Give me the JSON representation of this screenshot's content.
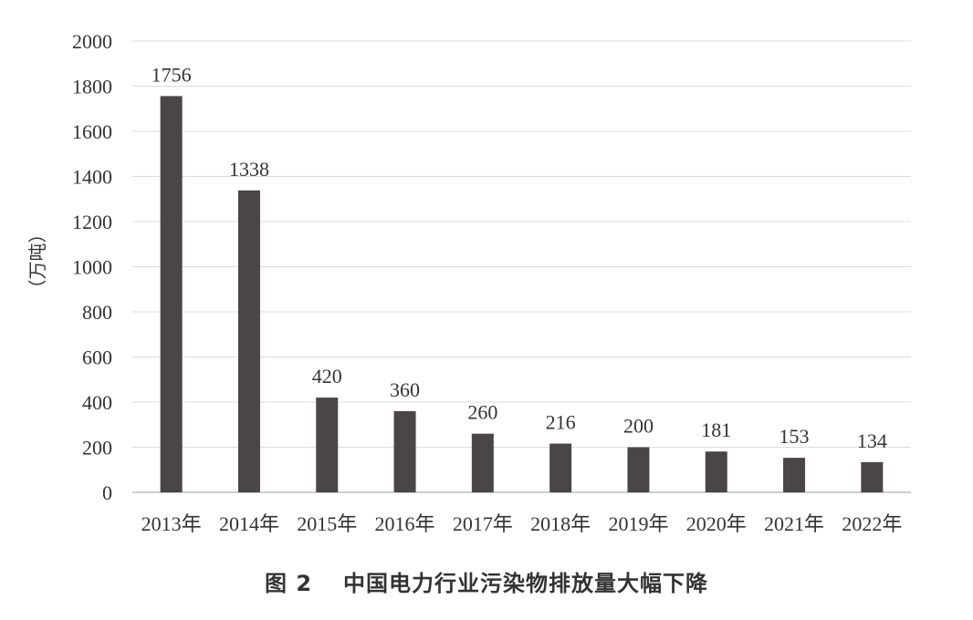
{
  "figure": {
    "number": "图 2",
    "title": "中国电力行业污染物排放量大幅下降"
  },
  "chart_data": {
    "type": "bar",
    "categories": [
      "2013年",
      "2014年",
      "2015年",
      "2016年",
      "2017年",
      "2018年",
      "2019年",
      "2020年",
      "2021年",
      "2022年"
    ],
    "values": [
      1756,
      1338,
      420,
      360,
      260,
      216,
      200,
      181,
      153,
      134
    ],
    "data_labels": [
      "1756",
      "1338",
      "420",
      "360",
      "260",
      "216",
      "200",
      "181",
      "153",
      "134"
    ],
    "ylabel": "（万吨）",
    "ylim": [
      0,
      2000
    ],
    "yticks": [
      "0",
      "200",
      "400",
      "600",
      "800",
      "1000",
      "1200",
      "1400",
      "1600",
      "1800",
      "2000"
    ],
    "grid": true,
    "bar_color": "#4a4647",
    "grid_color": "#dcdcdc",
    "axis_color": "#bdbdbd"
  }
}
